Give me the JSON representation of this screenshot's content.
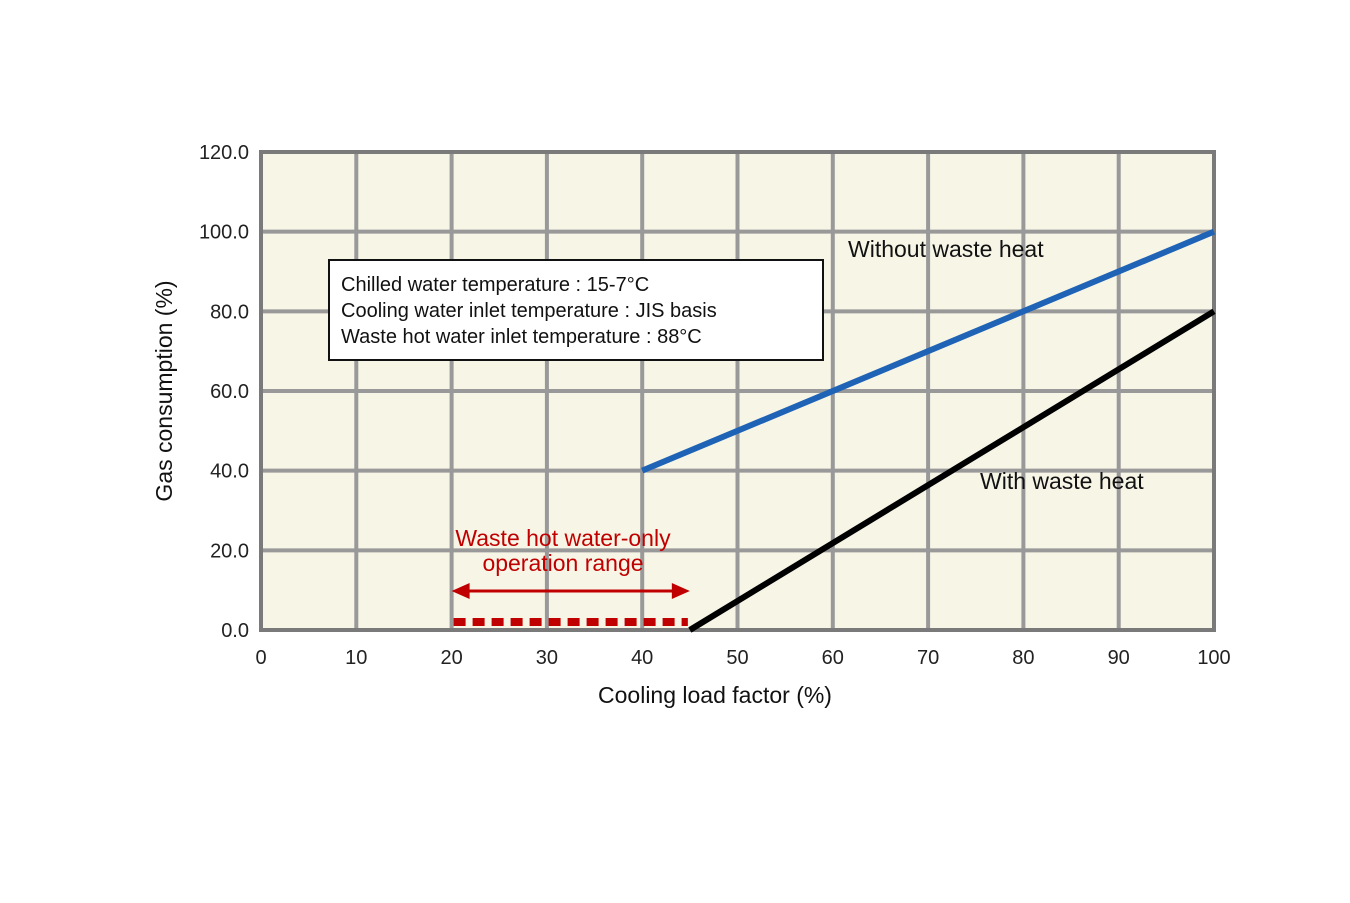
{
  "chart_data": {
    "type": "line",
    "xlabel": "Cooling load factor (%)",
    "ylabel": "Gas consumption (%)",
    "xlim": [
      0,
      100
    ],
    "ylim": [
      0,
      120
    ],
    "x_ticks": [
      0,
      10,
      20,
      30,
      40,
      50,
      60,
      70,
      80,
      90,
      100
    ],
    "x_tick_labels": [
      "0",
      "10",
      "20",
      "30",
      "40",
      "50",
      "60",
      "70",
      "80",
      "90",
      "100"
    ],
    "y_ticks": [
      0,
      20,
      40,
      60,
      80,
      100,
      120
    ],
    "y_tick_labels": [
      "0.0",
      "20.0",
      "40.0",
      "60.0",
      "80.0",
      "100.0",
      "120.0"
    ],
    "grid": true,
    "grid_x_step": 10,
    "grid_y_step": 20,
    "series": [
      {
        "name": "Without waste heat",
        "color": "#1e63b5",
        "x": [
          40,
          100
        ],
        "y": [
          40,
          100
        ]
      },
      {
        "name": "With waste heat",
        "color": "#000000",
        "x": [
          45,
          100
        ],
        "y": [
          0,
          80
        ]
      }
    ],
    "annotations": {
      "conditions": [
        "Chilled water temperature : 15-7°C",
        "Cooling water inlet temperature : JIS basis",
        "Waste hot water inlet temperature : 88°C"
      ],
      "operation_range": {
        "label_lines": [
          "Waste hot water-only",
          "operation range"
        ],
        "x_start": 20,
        "x_end": 45,
        "y": 2,
        "color": "#c00000"
      }
    },
    "colors": {
      "plot_background": "#f7f5e6",
      "grid": "#999999",
      "frame": "#7a7a7a"
    }
  }
}
